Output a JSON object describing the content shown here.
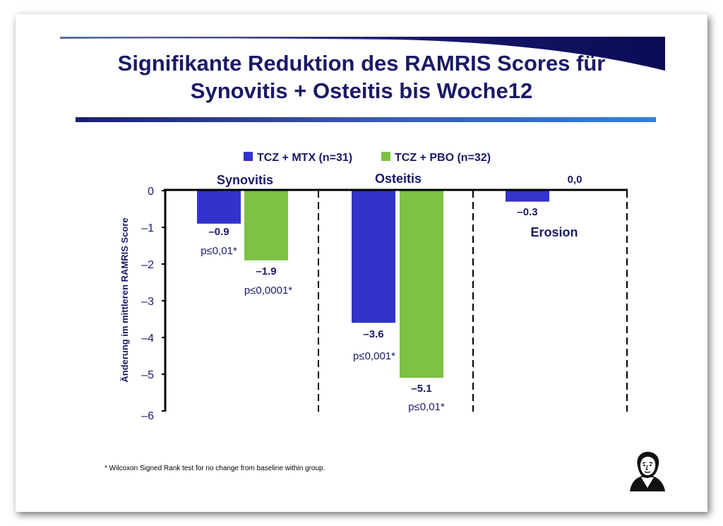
{
  "slide": {
    "title_line1": "Signifikante Reduktion des RAMRIS Scores für",
    "title_line2": "Synovitis + Osteitis bis Woche12",
    "footnote": "* Wilcoxon Signed Rank test for no change from baseline within group."
  },
  "colors": {
    "tcz_mtx": "#3333cc",
    "tcz_pbo": "#7dc242",
    "title": "#1a1a66",
    "label": "#1a1a66"
  },
  "chart_data": {
    "type": "bar",
    "ylabel": "Änderung im mittleren RAMRIS Score",
    "ylim": [
      -6,
      0
    ],
    "yticks": [
      "0",
      "–1",
      "–2",
      "–3",
      "–4",
      "–5",
      "–6"
    ],
    "grid": false,
    "legend_position": "top",
    "categories": [
      "Synovitis",
      "Osteitis",
      "Erosion"
    ],
    "series": [
      {
        "name": "TCZ + MTX (n=31)",
        "values": [
          -0.9,
          -3.6,
          -0.3
        ],
        "value_labels": [
          "–0.9",
          "–3.6",
          "–0.3"
        ],
        "p_values": [
          "p≤0,01*",
          "p≤0,001*",
          ""
        ]
      },
      {
        "name": "TCZ + PBO (n=32)",
        "values": [
          -1.9,
          -5.1,
          0.0
        ],
        "value_labels": [
          "–1.9",
          "–5.1",
          "0,0"
        ],
        "p_values": [
          "p≤0,0001*",
          "p≤0,01*",
          ""
        ]
      }
    ]
  }
}
